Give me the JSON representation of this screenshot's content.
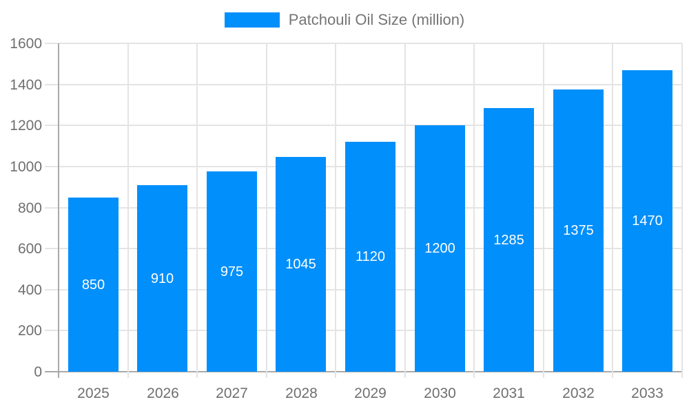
{
  "chart_data": {
    "type": "bar",
    "title": "",
    "legend": {
      "label": "Patchouli Oil Size (million)",
      "swatch_color": "#008FFB",
      "position": "top"
    },
    "categories": [
      "2025",
      "2026",
      "2027",
      "2028",
      "2029",
      "2030",
      "2031",
      "2032",
      "2033"
    ],
    "series": [
      {
        "name": "Patchouli Oil Size (million)",
        "values": [
          850,
          910,
          975,
          1045,
          1120,
          1200,
          1285,
          1375,
          1470
        ]
      }
    ],
    "xlabel": "",
    "ylabel": "",
    "ylim": [
      0,
      1600
    ],
    "y_ticks": [
      0,
      200,
      400,
      600,
      800,
      1000,
      1200,
      1400,
      1600
    ],
    "grid": true,
    "bar_color": "#008FFB",
    "value_label_color": "#ffffff",
    "axis_text_color": "#6f6f6f",
    "gridline_color": "#e4e4e4",
    "axis_line_color": "#a9a9a9"
  }
}
